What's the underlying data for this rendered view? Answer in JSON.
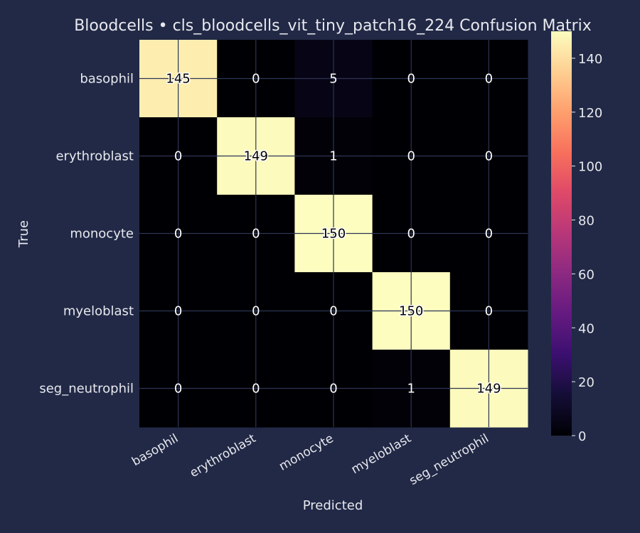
{
  "chart_data": {
    "type": "heatmap",
    "title": "Bloodcells • cls_bloodcells_vit_tiny_patch16_224 Confusion Matrix",
    "xlabel": "Predicted",
    "ylabel": "True",
    "x_categories": [
      "basophil",
      "erythroblast",
      "monocyte",
      "myeloblast",
      "seg_neutrophil"
    ],
    "y_categories": [
      "basophil",
      "erythroblast",
      "monocyte",
      "myeloblast",
      "seg_neutrophil"
    ],
    "values": [
      [
        145,
        0,
        5,
        0,
        0
      ],
      [
        0,
        149,
        1,
        0,
        0
      ],
      [
        0,
        0,
        150,
        0,
        0
      ],
      [
        0,
        0,
        0,
        150,
        0
      ],
      [
        0,
        0,
        0,
        1,
        149
      ]
    ],
    "colorbar": {
      "colormap": "magma",
      "range": [
        0,
        150
      ],
      "ticks": [
        0,
        20,
        40,
        60,
        80,
        100,
        120,
        140
      ]
    },
    "grid": true
  },
  "colors": {
    "background": "#212946",
    "text": "#e8e8ee",
    "grid": "#2c3554"
  }
}
